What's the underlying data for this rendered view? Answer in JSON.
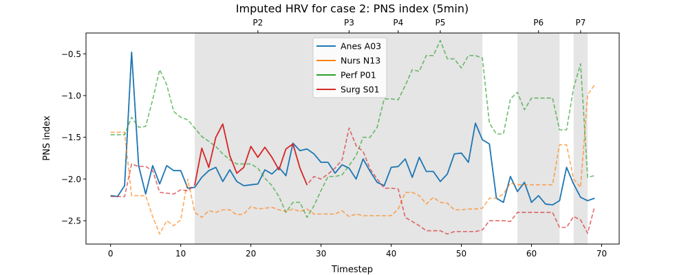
{
  "chart_data": {
    "type": "line",
    "title": "Imputed HRV for case 2: PNS index (5min)",
    "xlabel": "Timestep",
    "ylabel": "PNS index",
    "xlim": [
      -3.5,
      72.5
    ],
    "ylim": [
      -2.78,
      -0.25
    ],
    "xticks": [
      0,
      10,
      20,
      30,
      40,
      50,
      60,
      70
    ],
    "yticks": [
      -2.5,
      -2.0,
      -1.5,
      -1.0,
      -0.5
    ],
    "ytick_labels": [
      "−2.5",
      "−2.0",
      "−1.5",
      "−1.0",
      "−0.5"
    ],
    "grid": false,
    "legend_position": "top-center",
    "phase_spans": [
      [
        12,
        28
      ],
      [
        28,
        30
      ],
      [
        30,
        40
      ],
      [
        40,
        41
      ],
      [
        41,
        42
      ],
      [
        42,
        43
      ],
      [
        43,
        53
      ],
      [
        58,
        64
      ],
      [
        66,
        68
      ]
    ],
    "phase_labels": [
      {
        "label": "P2",
        "x": 21
      },
      {
        "label": "P3",
        "x": 34
      },
      {
        "label": "P4",
        "x": 41
      },
      {
        "label": "P5",
        "x": 47
      },
      {
        "label": "P6",
        "x": 61
      },
      {
        "label": "P7",
        "x": 67
      }
    ],
    "x": [
      0,
      1,
      2,
      3,
      4,
      5,
      6,
      7,
      8,
      9,
      10,
      11,
      12,
      13,
      14,
      15,
      16,
      17,
      18,
      19,
      20,
      21,
      22,
      23,
      24,
      25,
      26,
      27,
      28,
      29,
      30,
      31,
      32,
      33,
      34,
      35,
      36,
      37,
      38,
      39,
      40,
      41,
      42,
      43,
      44,
      45,
      46,
      47,
      48,
      49,
      50,
      51,
      52,
      53,
      54,
      55,
      56,
      57,
      58,
      59,
      60,
      61,
      62,
      63,
      64,
      65,
      66,
      67,
      68,
      69
    ],
    "series": [
      {
        "name": "Anes A03",
        "color": "#1f77b4",
        "values": [
          -2.2,
          -2.21,
          -2.08,
          -0.48,
          -1.84,
          -2.18,
          -1.84,
          -2.06,
          -1.84,
          -1.9,
          -1.9,
          -2.11,
          -2.1,
          -1.98,
          -1.9,
          -1.86,
          -2.03,
          -1.89,
          -2.03,
          -2.08,
          -2.07,
          -2.06,
          -1.89,
          -1.94,
          -1.86,
          -1.96,
          -1.57,
          -1.66,
          -1.64,
          -1.7,
          -1.8,
          -1.8,
          -1.93,
          -1.83,
          -1.87,
          -2.0,
          -1.76,
          -1.91,
          -2.04,
          -2.08,
          -1.86,
          -1.85,
          -1.76,
          -1.98,
          -1.74,
          -1.91,
          -1.91,
          -2.03,
          -1.94,
          -1.7,
          -1.69,
          -1.8,
          -1.33,
          -1.53,
          -1.58,
          -2.23,
          -2.28,
          -1.97,
          -2.15,
          -2.04,
          -2.28,
          -2.2,
          -2.3,
          -2.31,
          -2.26,
          -1.86,
          -2.06,
          -2.22,
          -2.26,
          -2.23
        ],
        "solid_ranges": [
          [
            0,
            55
          ],
          [
            55,
            69
          ]
        ]
      },
      {
        "name": "Nurs N13",
        "color": "#ff7f0e",
        "values": [
          -1.44,
          -1.44,
          -1.44,
          -2.2,
          -2.2,
          -2.2,
          -2.45,
          -2.66,
          -2.5,
          -2.56,
          -2.49,
          -2.0,
          -2.4,
          -2.46,
          -2.38,
          -2.4,
          -2.37,
          -2.37,
          -2.43,
          -2.42,
          -2.33,
          -2.36,
          -2.35,
          -2.34,
          -2.37,
          -2.39,
          -2.36,
          -2.39,
          -2.36,
          -2.42,
          -2.42,
          -2.42,
          -2.42,
          -2.38,
          -2.45,
          -2.42,
          -2.44,
          -2.44,
          -2.44,
          -2.44,
          -2.44,
          -2.36,
          -2.16,
          -2.16,
          -2.2,
          -2.3,
          -2.22,
          -2.28,
          -2.29,
          -2.37,
          -2.37,
          -2.36,
          -2.36,
          -2.35,
          -2.23,
          -2.23,
          -2.18,
          -2.05,
          -2.07,
          -2.07,
          -2.07,
          -2.07,
          -2.07,
          -2.07,
          -1.59,
          -1.59,
          -2.0,
          -2.1,
          -0.99,
          -0.87
        ],
        "solid_ranges": []
      },
      {
        "name": "Perf P01",
        "color": "#2ca02c",
        "values": [
          -1.47,
          -1.47,
          -1.47,
          -1.26,
          -1.38,
          -1.37,
          -1.05,
          -0.69,
          -0.87,
          -1.19,
          -1.26,
          -1.29,
          -1.39,
          -1.49,
          -1.55,
          -1.61,
          -1.7,
          -1.77,
          -1.82,
          -1.82,
          -1.82,
          -1.87,
          -1.99,
          -2.08,
          -2.21,
          -2.4,
          -2.28,
          -2.28,
          -2.46,
          -2.32,
          -2.14,
          -1.97,
          -1.97,
          -1.95,
          -1.84,
          -1.72,
          -1.5,
          -1.5,
          -1.38,
          -1.04,
          -1.04,
          -1.05,
          -0.88,
          -0.69,
          -0.71,
          -0.52,
          -0.52,
          -0.34,
          -0.56,
          -0.56,
          -0.67,
          -0.52,
          -0.52,
          -0.55,
          -1.33,
          -1.46,
          -1.46,
          -1.04,
          -0.96,
          -1.17,
          -1.03,
          -1.03,
          -1.03,
          -1.03,
          -1.41,
          -1.41,
          -0.91,
          -0.62,
          -1.98,
          -1.96
        ],
        "solid_ranges": []
      },
      {
        "name": "Surg S01",
        "color": "#d62728",
        "values": [
          -2.21,
          -2.21,
          -2.21,
          -1.82,
          -1.85,
          -1.85,
          -1.9,
          -2.16,
          -2.17,
          -2.18,
          -2.13,
          -2.14,
          -2.07,
          -1.63,
          -1.86,
          -1.5,
          -1.34,
          -1.72,
          -1.93,
          -1.86,
          -1.61,
          -1.74,
          -1.62,
          -1.74,
          -1.89,
          -1.64,
          -1.58,
          -1.87,
          -2.07,
          -1.97,
          -2.0,
          -1.94,
          -1.87,
          -1.77,
          -1.39,
          -1.6,
          -1.67,
          -1.88,
          -2.0,
          -2.11,
          -2.11,
          -2.12,
          -2.46,
          -2.51,
          -2.56,
          -2.62,
          -2.62,
          -2.62,
          -2.66,
          -2.63,
          -2.63,
          -2.63,
          -2.63,
          -2.61,
          -2.5,
          -2.5,
          -2.5,
          -2.51,
          -2.4,
          -2.4,
          -2.4,
          -2.4,
          -2.4,
          -2.4,
          -2.58,
          -2.58,
          -2.45,
          -2.49,
          -2.65,
          -2.33
        ],
        "solid_ranges": [
          [
            12,
            28
          ]
        ]
      }
    ]
  }
}
